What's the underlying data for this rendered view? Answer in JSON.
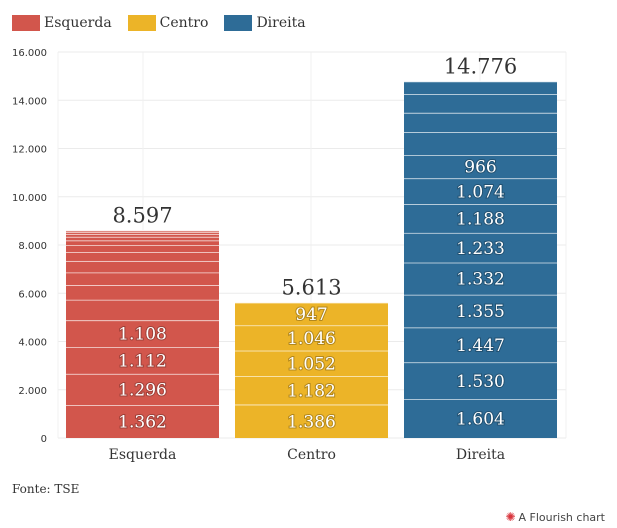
{
  "source": "Fonte: TSE",
  "credit": "A Flourish chart",
  "chart_data": {
    "type": "bar",
    "stacked": true,
    "categories": [
      "Esquerda",
      "Centro",
      "Direita"
    ],
    "legend": [
      {
        "name": "Esquerda",
        "color": "#d2564c"
      },
      {
        "name": "Centro",
        "color": "#ecb428"
      },
      {
        "name": "Direita",
        "color": "#2e6c97"
      }
    ],
    "ylim": [
      0,
      16000
    ],
    "yticks": [
      0,
      2000,
      4000,
      6000,
      8000,
      10000,
      12000,
      14000,
      16000
    ],
    "ytick_labels": [
      "0",
      "2.000",
      "4.000",
      "6.000",
      "8.000",
      "10.000",
      "12.000",
      "14.000",
      "16.000"
    ],
    "grid": true,
    "legend_position": "top-left",
    "totals": [
      8597,
      5613,
      14776
    ],
    "total_labels": [
      "8.597",
      "5.613",
      "14.776"
    ],
    "stacks": [
      {
        "category": "Esquerda",
        "color": "#d2564c",
        "segments": [
          {
            "value": 1362,
            "label": "1.362"
          },
          {
            "value": 1296,
            "label": "1.296"
          },
          {
            "value": 1112,
            "label": "1.112"
          },
          {
            "value": 1108,
            "label": "1.108"
          },
          {
            "value": 850
          },
          {
            "value": 610
          },
          {
            "value": 520
          },
          {
            "value": 480
          },
          {
            "value": 360
          },
          {
            "value": 300
          },
          {
            "value": 190
          },
          {
            "value": 150
          },
          {
            "value": 120
          },
          {
            "value": 80
          },
          {
            "value": 59
          }
        ]
      },
      {
        "category": "Centro",
        "color": "#ecb428",
        "segments": [
          {
            "value": 1386,
            "label": "1.386"
          },
          {
            "value": 1182,
            "label": "1.182"
          },
          {
            "value": 1052,
            "label": "1.052"
          },
          {
            "value": 1046,
            "label": "1.046"
          },
          {
            "value": 947,
            "label": "947"
          }
        ]
      },
      {
        "category": "Direita",
        "color": "#2e6c97",
        "segments": [
          {
            "value": 1604,
            "label": "1.604"
          },
          {
            "value": 1530,
            "label": "1.530"
          },
          {
            "value": 1447,
            "label": "1.447"
          },
          {
            "value": 1355,
            "label": "1.355"
          },
          {
            "value": 1332,
            "label": "1.332"
          },
          {
            "value": 1233,
            "label": "1.233"
          },
          {
            "value": 1188,
            "label": "1.188"
          },
          {
            "value": 1074,
            "label": "1.074"
          },
          {
            "value": 966,
            "label": "966"
          },
          {
            "value": 950
          },
          {
            "value": 800
          },
          {
            "value": 780
          },
          {
            "value": 517
          }
        ]
      }
    ]
  }
}
